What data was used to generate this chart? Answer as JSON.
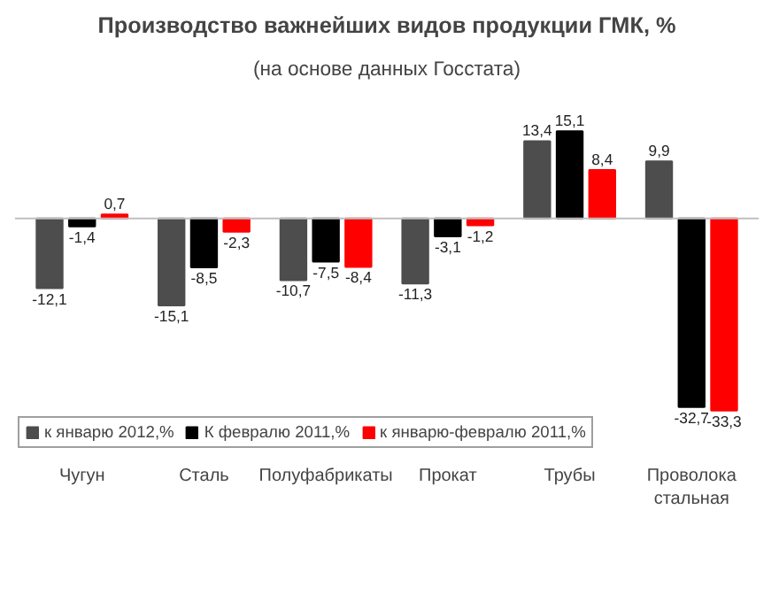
{
  "chart_data": {
    "type": "bar",
    "title": "Производство важнейших видов продукции ГМК, %",
    "subtitle": "(на основе данных Госстата)",
    "categories": [
      "Чугун",
      "Сталь",
      "Полуфабрикаты",
      "Прокат",
      "Трубы",
      "Проволока стальная"
    ],
    "series": [
      {
        "name": "к январю 2012,%",
        "color": "#4d4d4d",
        "values": [
          -12.1,
          -15.1,
          -10.7,
          -11.3,
          13.4,
          9.9
        ],
        "value_labels": [
          "-12,1",
          "-15,1",
          "-10,7",
          "-11,3",
          "13,4",
          "9,9"
        ]
      },
      {
        "name": "К февралю 2011,%",
        "color": "#000000",
        "values": [
          -1.4,
          -8.5,
          -7.5,
          -3.1,
          15.1,
          -32.7
        ],
        "value_labels": [
          "-1,4",
          "-8,5",
          "-7,5",
          "-3,1",
          "15,1",
          "-32,7"
        ]
      },
      {
        "name": "к январю-февралю 2011,%",
        "color": "#ff0000",
        "values": [
          0.7,
          -2.3,
          -8.4,
          -1.2,
          8.4,
          -33.3
        ],
        "value_labels": [
          "0,7",
          "-2,3",
          "-8,4",
          "-1,2",
          "8,4",
          "-33,3"
        ]
      }
    ],
    "legend": "bottom"
  }
}
